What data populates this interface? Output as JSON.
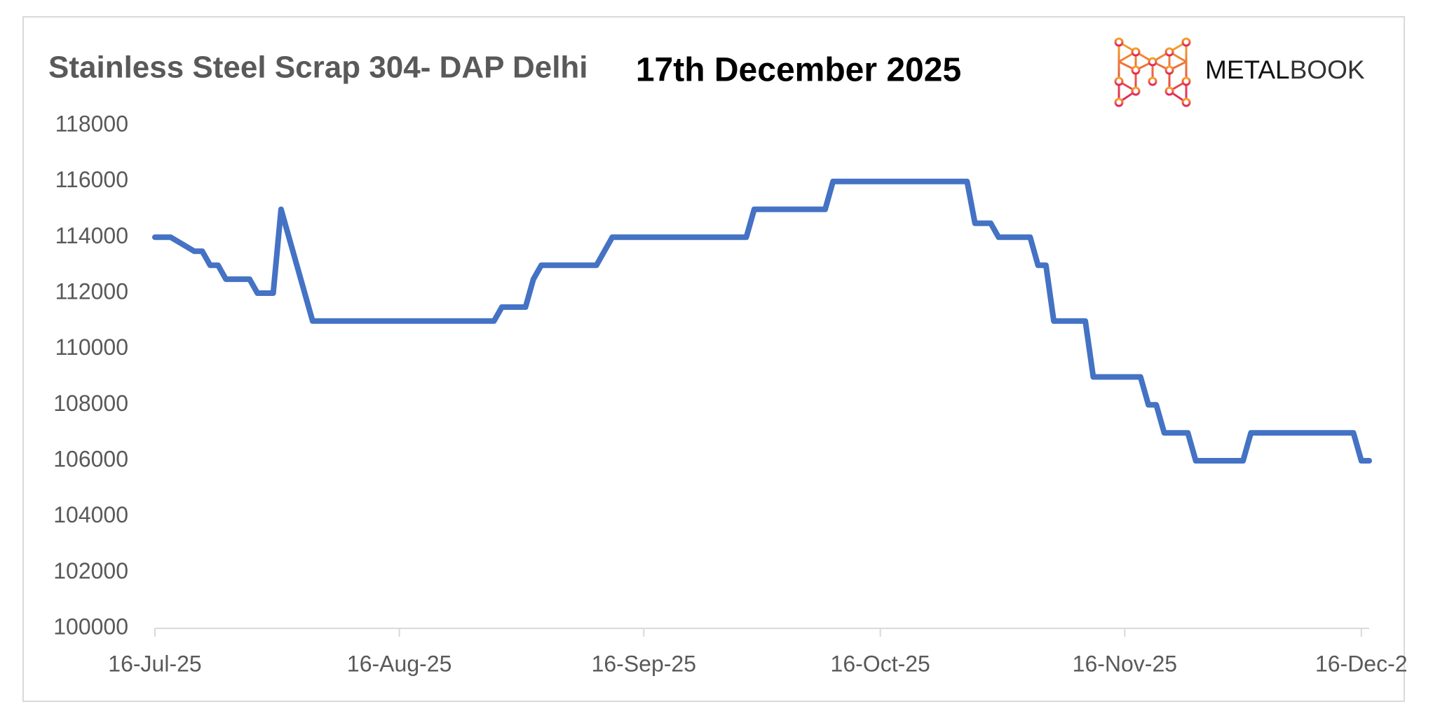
{
  "logo": {
    "bold": "METAL",
    "light": "BOOK"
  },
  "chart_data": {
    "type": "line",
    "title": "Stainless Steel Scrap 304- DAP Delhi",
    "subtitle": "17th December 2025",
    "x": [
      "2025-07-16",
      "2025-07-18",
      "2025-07-21",
      "2025-07-22",
      "2025-07-23",
      "2025-07-24",
      "2025-07-25",
      "2025-07-28",
      "2025-07-29",
      "2025-07-31",
      "2025-08-01",
      "2025-08-05",
      "2025-08-28",
      "2025-08-29",
      "2025-09-01",
      "2025-09-02",
      "2025-09-03",
      "2025-09-10",
      "2025-09-12",
      "2025-09-29",
      "2025-09-30",
      "2025-10-09",
      "2025-10-10",
      "2025-10-27",
      "2025-10-28",
      "2025-10-30",
      "2025-10-31",
      "2025-11-04",
      "2025-11-05",
      "2025-11-06",
      "2025-11-07",
      "2025-11-11",
      "2025-11-12",
      "2025-11-18",
      "2025-11-19",
      "2025-11-20",
      "2025-11-21",
      "2025-11-24",
      "2025-11-25",
      "2025-12-01",
      "2025-12-02",
      "2025-12-15",
      "2025-12-16",
      "2025-12-17"
    ],
    "series": [
      {
        "color": "#4472c4",
        "values": [
          114000,
          114000,
          113500,
          113500,
          113000,
          113000,
          112500,
          112500,
          112000,
          112000,
          115000,
          111000,
          111000,
          111500,
          111500,
          112500,
          113000,
          113000,
          114000,
          114000,
          115000,
          115000,
          116000,
          116000,
          114500,
          114500,
          114000,
          114000,
          113000,
          113000,
          111000,
          111000,
          109000,
          109000,
          108000,
          108000,
          107000,
          107000,
          106000,
          106000,
          107000,
          107000,
          106000,
          106000
        ]
      }
    ],
    "xlim": [
      "2025-07-16",
      "2025-12-17"
    ],
    "xticks": [
      {
        "value": "2025-07-16",
        "label": "16-Jul-25"
      },
      {
        "value": "2025-08-16",
        "label": "16-Aug-25"
      },
      {
        "value": "2025-09-16",
        "label": "16-Sep-25"
      },
      {
        "value": "2025-10-16",
        "label": "16-Oct-25"
      },
      {
        "value": "2025-11-16",
        "label": "16-Nov-25"
      },
      {
        "value": "2025-12-16",
        "label": "16-Dec-2"
      }
    ],
    "ylim": [
      100000,
      118000
    ],
    "yticks": [
      100000,
      102000,
      104000,
      106000,
      108000,
      110000,
      112000,
      114000,
      116000,
      118000
    ],
    "grid": false
  }
}
